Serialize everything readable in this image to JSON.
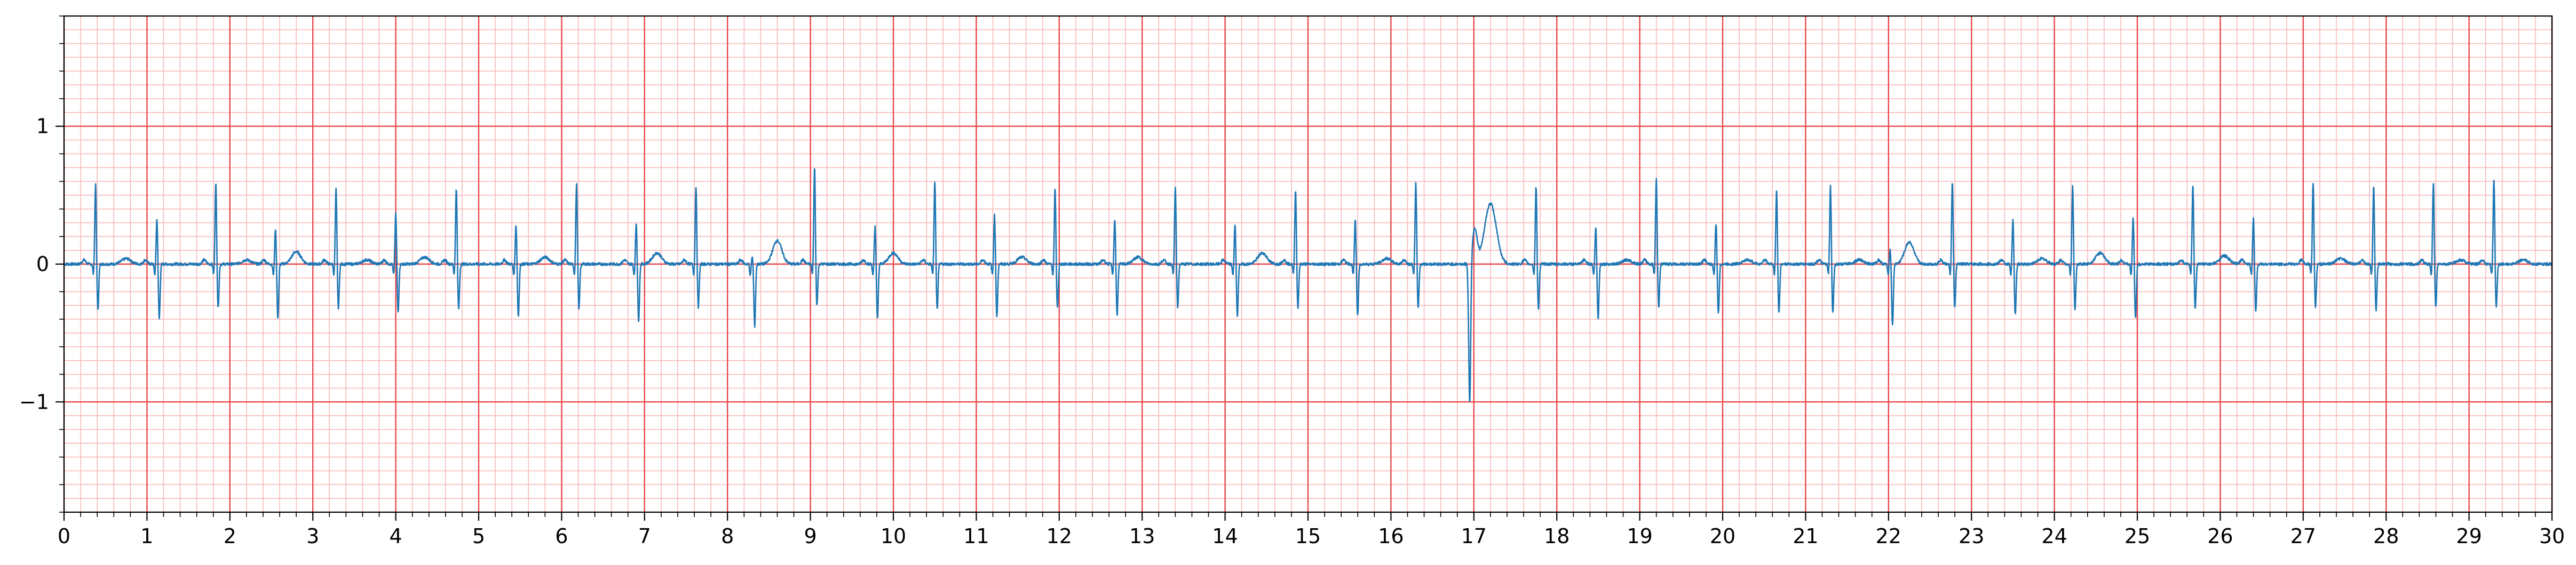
{
  "chart_data": {
    "type": "line",
    "title": "",
    "xlabel": "",
    "ylabel": "",
    "xlim": [
      0,
      30
    ],
    "ylim": [
      -1.8,
      1.8
    ],
    "x_ticks": [
      0,
      1,
      2,
      3,
      4,
      5,
      6,
      7,
      8,
      9,
      10,
      11,
      12,
      13,
      14,
      15,
      16,
      17,
      18,
      19,
      20,
      21,
      22,
      23,
      24,
      25,
      26,
      27,
      28,
      29,
      30
    ],
    "y_ticks": [
      -1,
      0,
      1
    ],
    "y_tick_labels": [
      "−1",
      "0",
      "1"
    ],
    "grid": {
      "major_x_step": 1,
      "major_y_step": 1,
      "minor_x_step": 0.2,
      "minor_y_step": 0.1,
      "major_color": "#e8474a",
      "minor_color": "#f9b8b8"
    },
    "series": [
      {
        "line_color": "#1f77b4",
        "beat_templates": {
          "normal": [
            [
              -0.3,
              0
            ],
            [
              -0.22,
              0.02
            ],
            [
              -0.2,
              0.03
            ],
            [
              -0.16,
              0.0
            ],
            [
              -0.12,
              -0.02
            ],
            [
              -0.05,
              -0.05
            ],
            [
              0.0,
              0.58
            ],
            [
              0.04,
              -0.34
            ],
            [
              0.08,
              -0.02
            ],
            [
              0.2,
              0.02
            ],
            [
              0.28,
              0.04
            ],
            [
              0.35,
              0.0
            ]
          ],
          "normal_dip": [
            [
              -0.12,
              0.0
            ],
            [
              -0.06,
              -0.08
            ],
            [
              -0.02,
              -0.3
            ],
            [
              0.02,
              0.3
            ],
            [
              0.06,
              -0.4
            ],
            [
              0.1,
              -0.05
            ],
            [
              0.22,
              0.0
            ],
            [
              0.3,
              0.05
            ],
            [
              0.36,
              0.0
            ]
          ],
          "wave": [
            [
              -0.05,
              0
            ],
            [
              0.0,
              0.06
            ],
            [
              0.05,
              0.09
            ],
            [
              0.12,
              0.05
            ],
            [
              0.18,
              0
            ]
          ]
        },
        "beats": [
          {
            "t": 0.38,
            "r": 0.58,
            "s": -0.34,
            "kind": "normal"
          },
          {
            "t": 1.12,
            "r": 0.33,
            "s": -0.4,
            "kind": "normal_dip"
          },
          {
            "t": 1.83,
            "r": 0.6,
            "s": -0.32,
            "kind": "normal"
          },
          {
            "t": 2.55,
            "r": 0.26,
            "s": -0.4,
            "kind": "normal_dip"
          },
          {
            "t": 3.28,
            "r": 0.55,
            "s": -0.32,
            "kind": "normal"
          },
          {
            "t": 4.0,
            "r": 0.37,
            "s": -0.35,
            "kind": "normal_dip"
          },
          {
            "t": 4.73,
            "r": 0.56,
            "s": -0.33,
            "kind": "normal"
          },
          {
            "t": 5.45,
            "r": 0.29,
            "s": -0.38,
            "kind": "normal_dip"
          },
          {
            "t": 6.18,
            "r": 0.59,
            "s": -0.33,
            "kind": "normal"
          },
          {
            "t": 6.9,
            "r": 0.3,
            "s": -0.41,
            "kind": "normal_dip"
          },
          {
            "t": 7.62,
            "r": 0.57,
            "s": -0.32,
            "kind": "normal"
          },
          {
            "t": 8.3,
            "r": 0.06,
            "s": -0.45,
            "kind": "normal_dip"
          },
          {
            "t": 9.05,
            "r": 0.71,
            "s": -0.3,
            "kind": "normal"
          },
          {
            "t": 9.78,
            "r": 0.28,
            "s": -0.4,
            "kind": "normal_dip"
          },
          {
            "t": 10.5,
            "r": 0.61,
            "s": -0.33,
            "kind": "normal"
          },
          {
            "t": 11.22,
            "r": 0.36,
            "s": -0.38,
            "kind": "normal_dip"
          },
          {
            "t": 11.95,
            "r": 0.55,
            "s": -0.32,
            "kind": "normal"
          },
          {
            "t": 12.67,
            "r": 0.33,
            "s": -0.37,
            "kind": "normal_dip"
          },
          {
            "t": 13.4,
            "r": 0.56,
            "s": -0.32,
            "kind": "normal"
          },
          {
            "t": 14.12,
            "r": 0.29,
            "s": -0.38,
            "kind": "normal_dip"
          },
          {
            "t": 14.85,
            "r": 0.55,
            "s": -0.32,
            "kind": "normal"
          },
          {
            "t": 15.57,
            "r": 0.33,
            "s": -0.38,
            "kind": "normal_dip"
          },
          {
            "t": 16.3,
            "r": 0.59,
            "s": -0.32,
            "kind": "normal"
          },
          {
            "t": 16.97,
            "r": -0.02,
            "s": -1.04,
            "kind": "pvc"
          },
          {
            "t": 17.75,
            "r": 0.57,
            "s": -0.33,
            "kind": "normal"
          },
          {
            "t": 18.47,
            "r": 0.27,
            "s": -0.4,
            "kind": "normal_dip"
          },
          {
            "t": 19.2,
            "r": 0.63,
            "s": -0.32,
            "kind": "normal"
          },
          {
            "t": 19.92,
            "r": 0.3,
            "s": -0.36,
            "kind": "normal_dip"
          },
          {
            "t": 20.65,
            "r": 0.55,
            "s": -0.36,
            "kind": "normal"
          },
          {
            "t": 21.3,
            "r": 0.57,
            "s": -0.36,
            "kind": "normal"
          },
          {
            "t": 22.02,
            "r": 0.11,
            "s": -0.44,
            "kind": "normal_dip"
          },
          {
            "t": 22.77,
            "r": 0.6,
            "s": -0.32,
            "kind": "normal"
          },
          {
            "t": 23.5,
            "r": 0.33,
            "s": -0.37,
            "kind": "normal_dip"
          },
          {
            "t": 24.22,
            "r": 0.57,
            "s": -0.33,
            "kind": "normal"
          },
          {
            "t": 24.95,
            "r": 0.34,
            "s": -0.39,
            "kind": "normal_dip"
          },
          {
            "t": 25.67,
            "r": 0.58,
            "s": -0.33,
            "kind": "normal"
          },
          {
            "t": 26.4,
            "r": 0.34,
            "s": -0.35,
            "kind": "normal_dip"
          },
          {
            "t": 27.12,
            "r": 0.6,
            "s": -0.32,
            "kind": "normal"
          },
          {
            "t": 27.85,
            "r": 0.57,
            "s": -0.34,
            "kind": "normal"
          },
          {
            "t": 28.57,
            "r": 0.6,
            "s": -0.32,
            "kind": "normal"
          },
          {
            "t": 29.3,
            "r": 0.62,
            "s": -0.31,
            "kind": "normal"
          }
        ],
        "t_waves": [
          {
            "t": 0.75,
            "h": 0.04
          },
          {
            "t": 2.2,
            "h": 0.03
          },
          {
            "t": 2.8,
            "h": 0.09
          },
          {
            "t": 3.65,
            "h": 0.03
          },
          {
            "t": 4.35,
            "h": 0.05
          },
          {
            "t": 5.8,
            "h": 0.05
          },
          {
            "t": 7.15,
            "h": 0.08
          },
          {
            "t": 8.6,
            "h": 0.17
          },
          {
            "t": 10.0,
            "h": 0.08
          },
          {
            "t": 11.55,
            "h": 0.05
          },
          {
            "t": 12.95,
            "h": 0.05
          },
          {
            "t": 14.45,
            "h": 0.08
          },
          {
            "t": 15.95,
            "h": 0.04
          },
          {
            "t": 17.2,
            "h": 0.44
          },
          {
            "t": 18.85,
            "h": 0.03
          },
          {
            "t": 20.3,
            "h": 0.03
          },
          {
            "t": 21.65,
            "h": 0.03
          },
          {
            "t": 22.25,
            "h": 0.16
          },
          {
            "t": 23.85,
            "h": 0.04
          },
          {
            "t": 24.55,
            "h": 0.08
          },
          {
            "t": 26.05,
            "h": 0.06
          },
          {
            "t": 27.45,
            "h": 0.04
          },
          {
            "t": 28.9,
            "h": 0.03
          },
          {
            "t": 29.65,
            "h": 0.03
          }
        ]
      }
    ]
  }
}
